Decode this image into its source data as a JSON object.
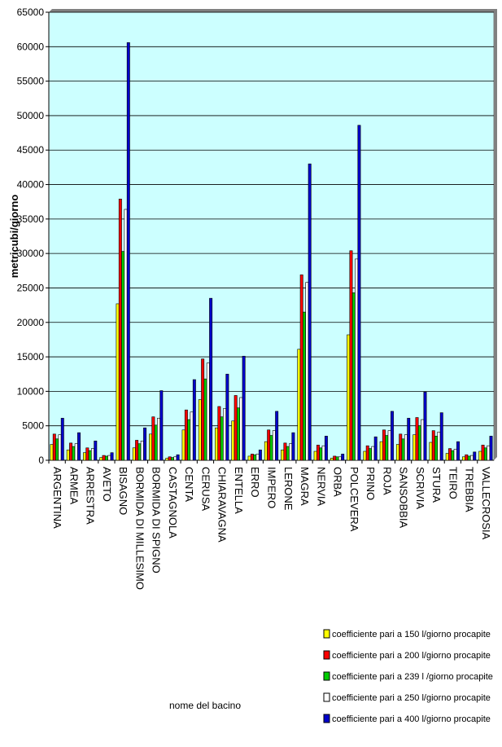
{
  "chart_data": {
    "type": "bar",
    "y_label": "metricubi/giorno",
    "x_label": "nome del bacino",
    "categories": [
      "ARGENTINA",
      "ARMEA",
      "ARRESTRA",
      "AVETO",
      "BISAGNO",
      "BORMIDA DI MILLESIMO",
      "BORMIDA DI SPIGNO",
      "CASTAGNOLA",
      "CENTA",
      "CERUSA",
      "CHIARAVAGNA",
      "ENTELLA",
      "ERRO",
      "IMPERO",
      "LERONE",
      "MAGRA",
      "NERVIA",
      "ORBA",
      "POLCEVERA",
      "PRINO",
      "ROJA",
      "SANSOBBIA",
      "SCRIVIA",
      "STURA",
      "TEIRO",
      "TREBBIA",
      "VALLECROSIA"
    ],
    "series": [
      {
        "name": "coefficiente pari a 150 l/giorno procapite",
        "color": "#ffff00",
        "values": [
          2300,
          1500,
          1100,
          400,
          22700,
          1800,
          3800,
          300,
          4400,
          8800,
          4700,
          5700,
          600,
          2700,
          1500,
          16100,
          1300,
          300,
          18200,
          1300,
          2700,
          2300,
          3700,
          2600,
          1000,
          500,
          1300
        ]
      },
      {
        "name": "coefficiente pari a 200 l/giorno procapite",
        "color": "#ff0000",
        "values": [
          3800,
          2500,
          1800,
          700,
          37900,
          2900,
          6300,
          500,
          7300,
          14700,
          7800,
          9400,
          900,
          4400,
          2500,
          26900,
          2200,
          600,
          30400,
          2100,
          4400,
          3800,
          6200,
          4300,
          1700,
          800,
          2200
        ]
      },
      {
        "name": "coefficiente pari a 239 l /giorno procapite",
        "color": "#00cc00",
        "values": [
          3100,
          2000,
          1400,
          600,
          30300,
          2400,
          5100,
          400,
          5900,
          11800,
          6300,
          7600,
          800,
          3600,
          2000,
          21500,
          1800,
          500,
          24300,
          1700,
          3600,
          3100,
          5000,
          3500,
          1400,
          600,
          1800
        ]
      },
      {
        "name": "coefficiente pari a 250 l/giorno procapite",
        "color": "#ffffff",
        "values": [
          3700,
          2400,
          1700,
          700,
          36400,
          2800,
          6100,
          500,
          7000,
          14100,
          7500,
          9100,
          900,
          4300,
          2400,
          25800,
          2100,
          500,
          29200,
          2000,
          4300,
          3700,
          5900,
          4100,
          1600,
          700,
          2100
        ]
      },
      {
        "name": "coefficiente pari a 400 l/giorno procapite",
        "color": "#0000cc",
        "values": [
          6100,
          4000,
          2800,
          1100,
          60600,
          4700,
          10100,
          800,
          11700,
          23500,
          12500,
          15100,
          1500,
          7100,
          4000,
          43000,
          3500,
          900,
          48600,
          3400,
          7100,
          6100,
          9900,
          6900,
          2700,
          1200,
          3500
        ]
      }
    ],
    "ylim": [
      0,
      65000
    ],
    "yticks": [
      0,
      5000,
      10000,
      15000,
      20000,
      25000,
      30000,
      35000,
      40000,
      45000,
      50000,
      55000,
      60000,
      65000
    ],
    "plot_background": "#ccffff"
  }
}
